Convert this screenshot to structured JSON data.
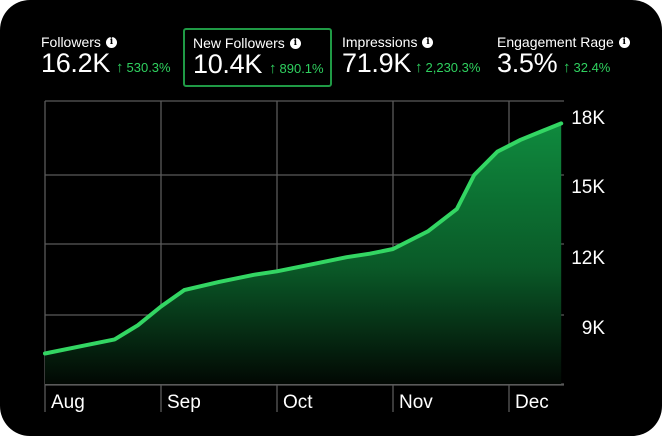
{
  "metrics": [
    {
      "label": "Followers",
      "value": "16.2K",
      "delta": "530.3%",
      "selected": false
    },
    {
      "label": "New Followers",
      "value": "10.4K",
      "delta": "890.1%",
      "selected": true
    },
    {
      "label": "Impressions",
      "value": "71.9K",
      "delta": "2,230.3%",
      "selected": false
    },
    {
      "label": "Engagement Rage",
      "value": "3.5%",
      "delta": "32.4%",
      "selected": false
    }
  ],
  "colors": {
    "background": "#000000",
    "accent": "#2fd05f",
    "text": "#ffffff",
    "grid": "#5a5a5a"
  },
  "icons": {
    "info": "info-icon",
    "delta": "up-arrow-icon"
  },
  "chart_data": {
    "type": "area",
    "x_labels": [
      "Aug",
      "Sep",
      "Oct",
      "Nov",
      "Dec"
    ],
    "y_ticks": [
      "18K",
      "15K",
      "12K",
      "9K"
    ],
    "ylim": [
      6500,
      18000
    ],
    "grid": true,
    "x": [
      0,
      0.3,
      0.6,
      0.8,
      1.0,
      1.2,
      1.5,
      1.8,
      2.0,
      2.3,
      2.6,
      2.8,
      3.0,
      3.3,
      3.55,
      3.7,
      3.9,
      4.1,
      4.3,
      4.45
    ],
    "values": [
      7800,
      8100,
      8400,
      9000,
      9800,
      10500,
      10850,
      11150,
      11300,
      11600,
      11900,
      12050,
      12250,
      13000,
      13950,
      15400,
      16400,
      16900,
      17300,
      17600
    ]
  }
}
